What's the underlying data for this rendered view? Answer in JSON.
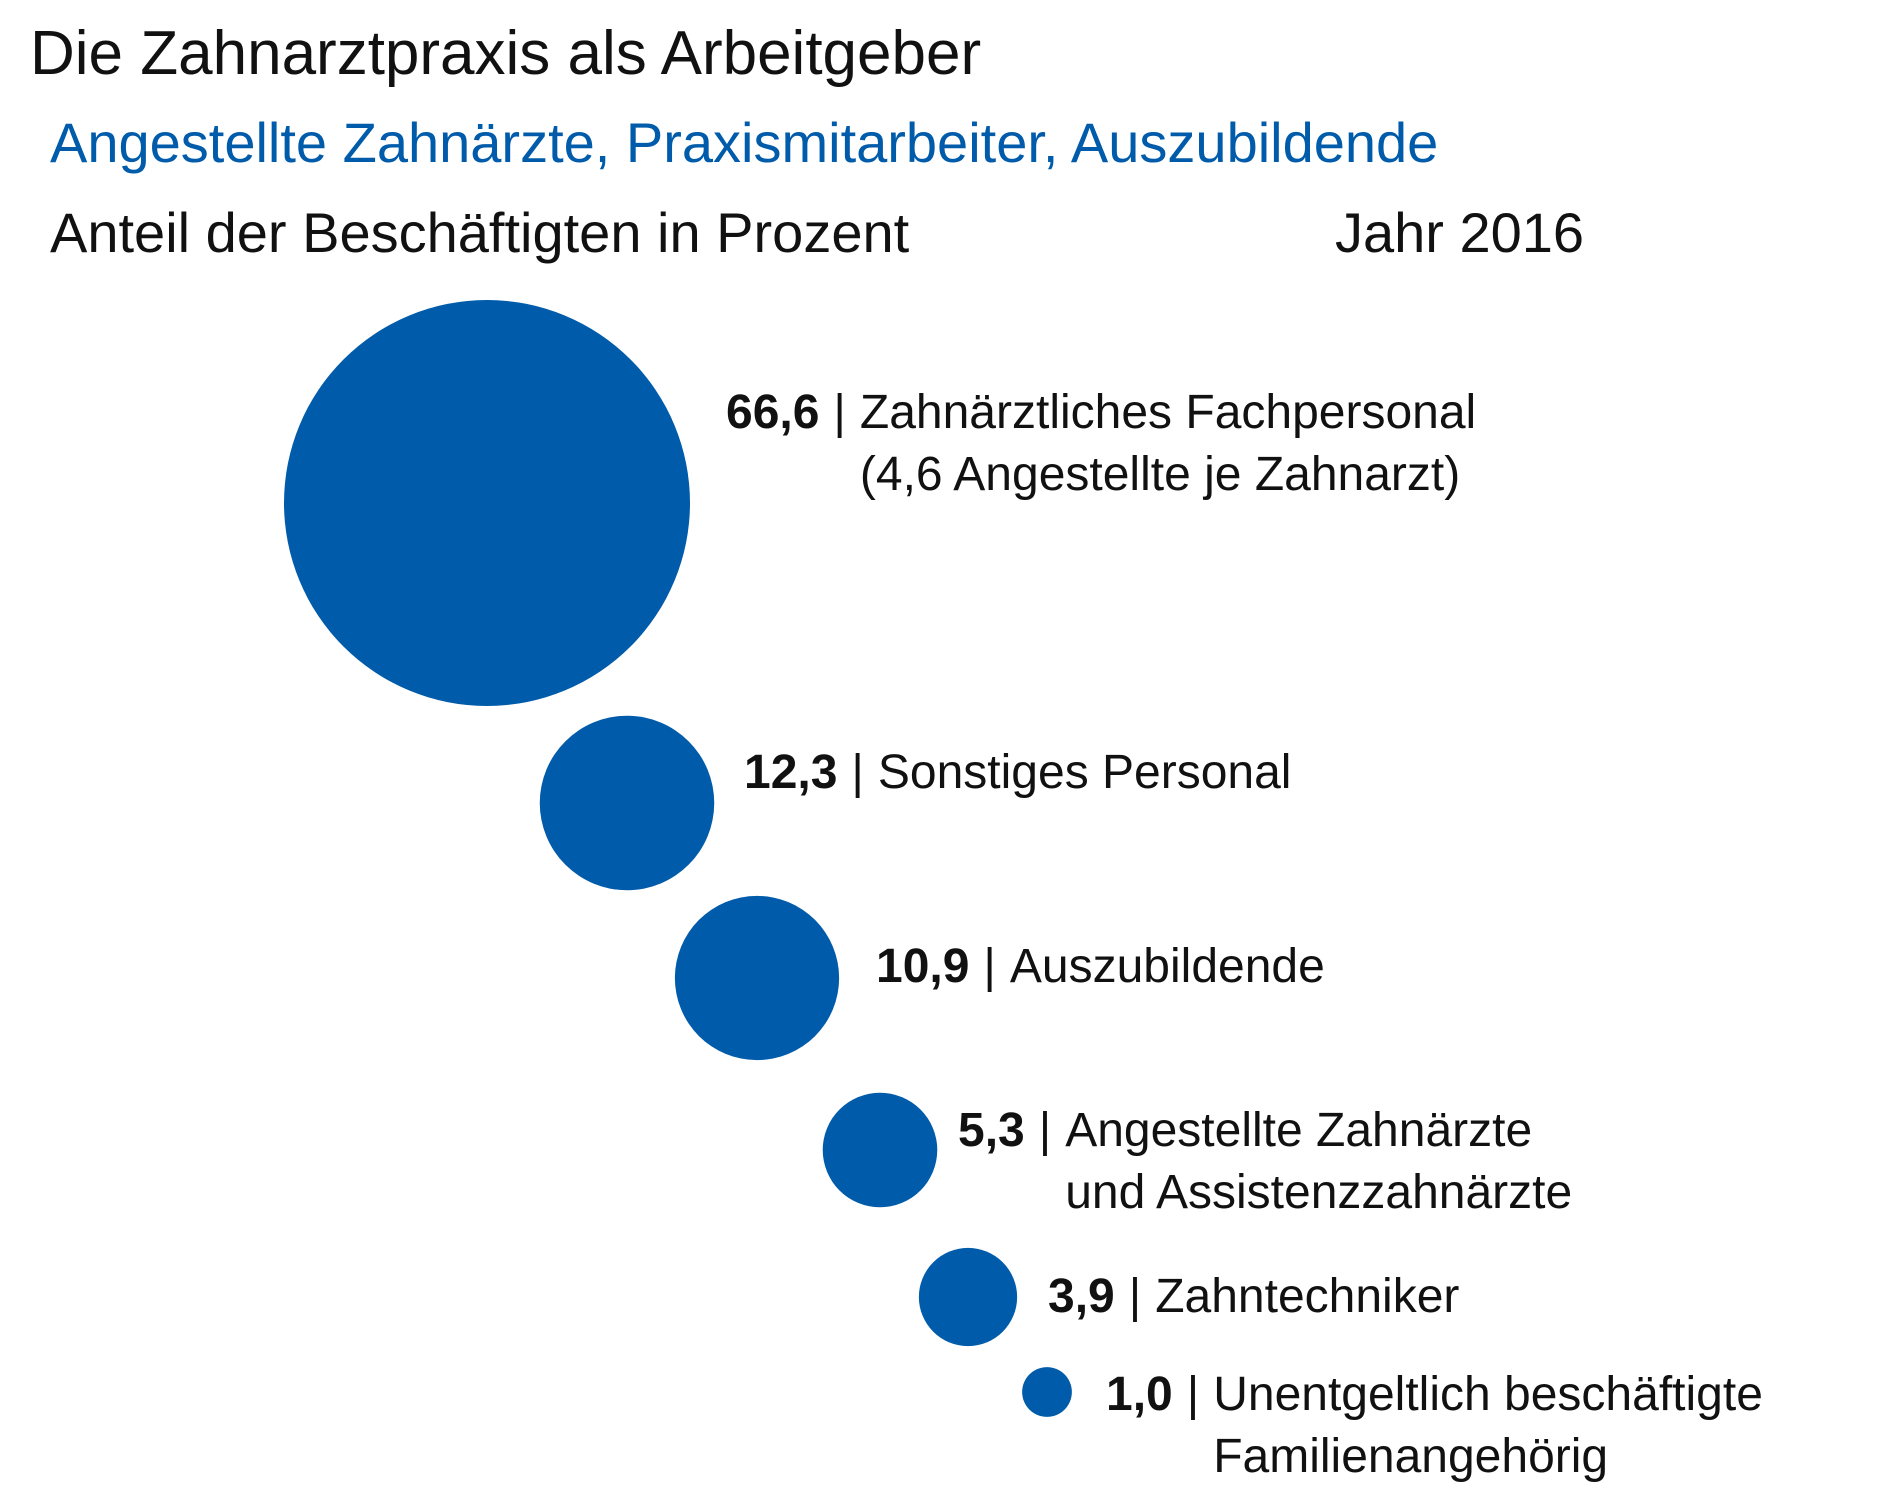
{
  "title": "Die Zahnarztpraxis als Arbeitgeber",
  "subtitle": "Angestellte Zahnärzte, Praxismitarbeiter, Auszubildende",
  "unit_label": "Anteil der Beschäftigten in Prozent",
  "year_label": "Jahr 2016",
  "accent_color": "#005baa",
  "chart_data": {
    "type": "bubble",
    "title": "Die Zahnarztpraxis als Arbeitgeber",
    "subtitle": "Angestellte Zahnärzte, Praxismitarbeiter, Auszubildende",
    "unit": "Anteil der Beschäftigten in Prozent",
    "year": "Jahr 2016",
    "separator": "|",
    "items": [
      {
        "value": 66.6,
        "value_label": "66,6",
        "label_lines": [
          "Zahnärztliches Fachpersonal",
          "(4,6 Angestellte je Zahnarzt)"
        ]
      },
      {
        "value": 12.3,
        "value_label": "12,3",
        "label_lines": [
          "Sonstiges Personal"
        ]
      },
      {
        "value": 10.9,
        "value_label": "10,9",
        "label_lines": [
          "Auszubildende"
        ]
      },
      {
        "value": 5.3,
        "value_label": "5,3",
        "label_lines": [
          "Angestellte Zahnärzte",
          "und Assistenzzahnärzte"
        ]
      },
      {
        "value": 3.9,
        "value_label": "3,9",
        "label_lines": [
          "Zahntechniker"
        ]
      },
      {
        "value": 1.0,
        "value_label": "1,0",
        "label_lines": [
          "Unentgeltlich beschäftigte",
          "Familienangehörig"
        ]
      }
    ]
  }
}
